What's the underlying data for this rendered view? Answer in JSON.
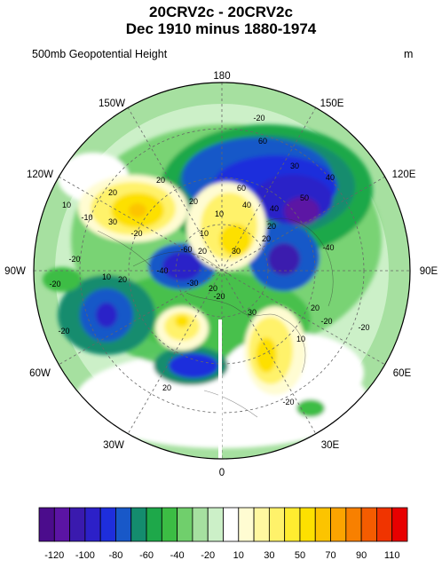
{
  "title_line1": "20CRV2c - 20CRV2c",
  "title_line2": "Dec 1910 minus 1880-1974",
  "subtitle_left": "500mb Geopotential Height",
  "subtitle_right": "m",
  "longitude_labels": [
    "180",
    "150E",
    "120E",
    "90E",
    "60E",
    "30E",
    "0",
    "30W",
    "60W",
    "90W",
    "120W",
    "150W"
  ],
  "contour_labels": [
    "-20",
    "60",
    "30",
    "40",
    "60",
    "50",
    "40",
    "10",
    "-10",
    "30",
    "20",
    "20",
    "20",
    "10",
    "10",
    "40",
    "20",
    "20",
    "30",
    "20",
    "-60",
    "-20",
    "-30",
    "-40",
    "-20",
    "-40",
    "20",
    "-20",
    "-20",
    "20",
    "10",
    "-20",
    "30",
    "20",
    "-20",
    "-20",
    "10",
    "20",
    "-20"
  ],
  "colorbar": {
    "colors": [
      "#4b0c8c",
      "#5b14a4",
      "#3a1aae",
      "#2c20c8",
      "#1e2edc",
      "#1858c8",
      "#148c6e",
      "#1ea84a",
      "#3cbd44",
      "#70cf6c",
      "#a6e0a0",
      "#ccf0c8",
      "#ffffff",
      "#fffcd2",
      "#fff7a0",
      "#fff26a",
      "#ffec30",
      "#fde000",
      "#fcc400",
      "#fba400",
      "#f88000",
      "#f45c00",
      "#f03400",
      "#e80000"
    ],
    "tick_labels": [
      "-120",
      "-100",
      "-80",
      "-60",
      "-40",
      "-20",
      "10",
      "30",
      "50",
      "70",
      "90",
      "110"
    ]
  }
}
